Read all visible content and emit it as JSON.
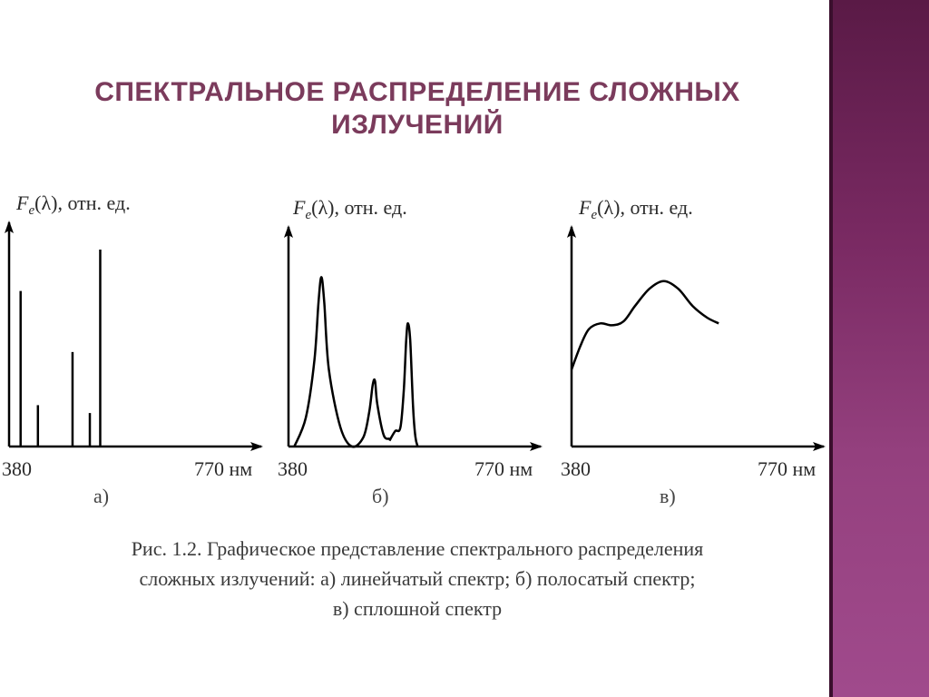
{
  "slide": {
    "title_line1": "СПЕКТРАЛЬНОЕ РАСПРЕДЕЛЕНИЕ СЛОЖНЫХ",
    "title_line2": "ИЗЛУЧЕНИЙ",
    "caption_line1": "Рис. 1.2. Графическое представление спектрального распределения",
    "caption_line2": "сложных излучений: а) линейчатый спектр; б) полосатый спектр;",
    "caption_line3": "в) сплошной спектр",
    "accent_color": "#7b3b5c",
    "sidebar_color": "#7a2a63"
  },
  "chart_data": [
    {
      "type": "bar",
      "panel_label": "а)",
      "ylabel_symbol": "F",
      "ylabel_subscript": "e",
      "ylabel_rest": "(λ), отн. ед.",
      "xlabel_start": "380",
      "xlabel_end": "770 нм",
      "xlim": [
        380,
        770
      ],
      "ylim": [
        0,
        1
      ],
      "lines": [
        {
          "x": 400,
          "value": 0.79
        },
        {
          "x": 430,
          "value": 0.21
        },
        {
          "x": 490,
          "value": 0.48
        },
        {
          "x": 520,
          "value": 0.17
        },
        {
          "x": 538,
          "value": 1.0
        }
      ]
    },
    {
      "type": "line",
      "panel_label": "б)",
      "ylabel_symbol": "F",
      "ylabel_subscript": "e",
      "ylabel_rest": "(λ), отн. ед.",
      "xlabel_start": "380",
      "xlabel_end": "770 нм",
      "xlim": [
        380,
        770
      ],
      "ylim": [
        0,
        1
      ],
      "segments": [
        [
          [
            390,
            0.0
          ],
          [
            410,
            0.15
          ],
          [
            425,
            0.45
          ],
          [
            432,
            0.75
          ],
          [
            437,
            0.88
          ],
          [
            442,
            0.75
          ],
          [
            450,
            0.4
          ],
          [
            470,
            0.1
          ],
          [
            490,
            0.0
          ],
          [
            510,
            0.05
          ],
          [
            520,
            0.18
          ],
          [
            526,
            0.32
          ],
          [
            530,
            0.34
          ],
          [
            534,
            0.22
          ],
          [
            545,
            0.06
          ],
          [
            555,
            0.04
          ]
        ],
        [
          [
            555,
            0.03
          ],
          [
            565,
            0.08
          ],
          [
            574,
            0.1
          ],
          [
            580,
            0.3
          ],
          [
            584,
            0.55
          ],
          [
            587,
            0.64
          ],
          [
            591,
            0.55
          ],
          [
            596,
            0.2
          ],
          [
            600,
            0.05
          ],
          [
            604,
            0.0
          ]
        ]
      ]
    },
    {
      "type": "line",
      "panel_label": "в)",
      "ylabel_symbol": "F",
      "ylabel_subscript": "e",
      "ylabel_rest": "(λ), отн. ед.",
      "xlabel_start": "380",
      "xlabel_end": "770 нм",
      "xlim": [
        380,
        770
      ],
      "ylim": [
        0,
        1
      ],
      "segments": [
        [
          [
            380,
            0.4
          ],
          [
            395,
            0.52
          ],
          [
            410,
            0.61
          ],
          [
            430,
            0.64
          ],
          [
            450,
            0.63
          ],
          [
            470,
            0.65
          ],
          [
            490,
            0.73
          ],
          [
            515,
            0.82
          ],
          [
            540,
            0.86
          ],
          [
            565,
            0.82
          ],
          [
            590,
            0.73
          ],
          [
            615,
            0.67
          ],
          [
            635,
            0.64
          ]
        ]
      ]
    }
  ]
}
